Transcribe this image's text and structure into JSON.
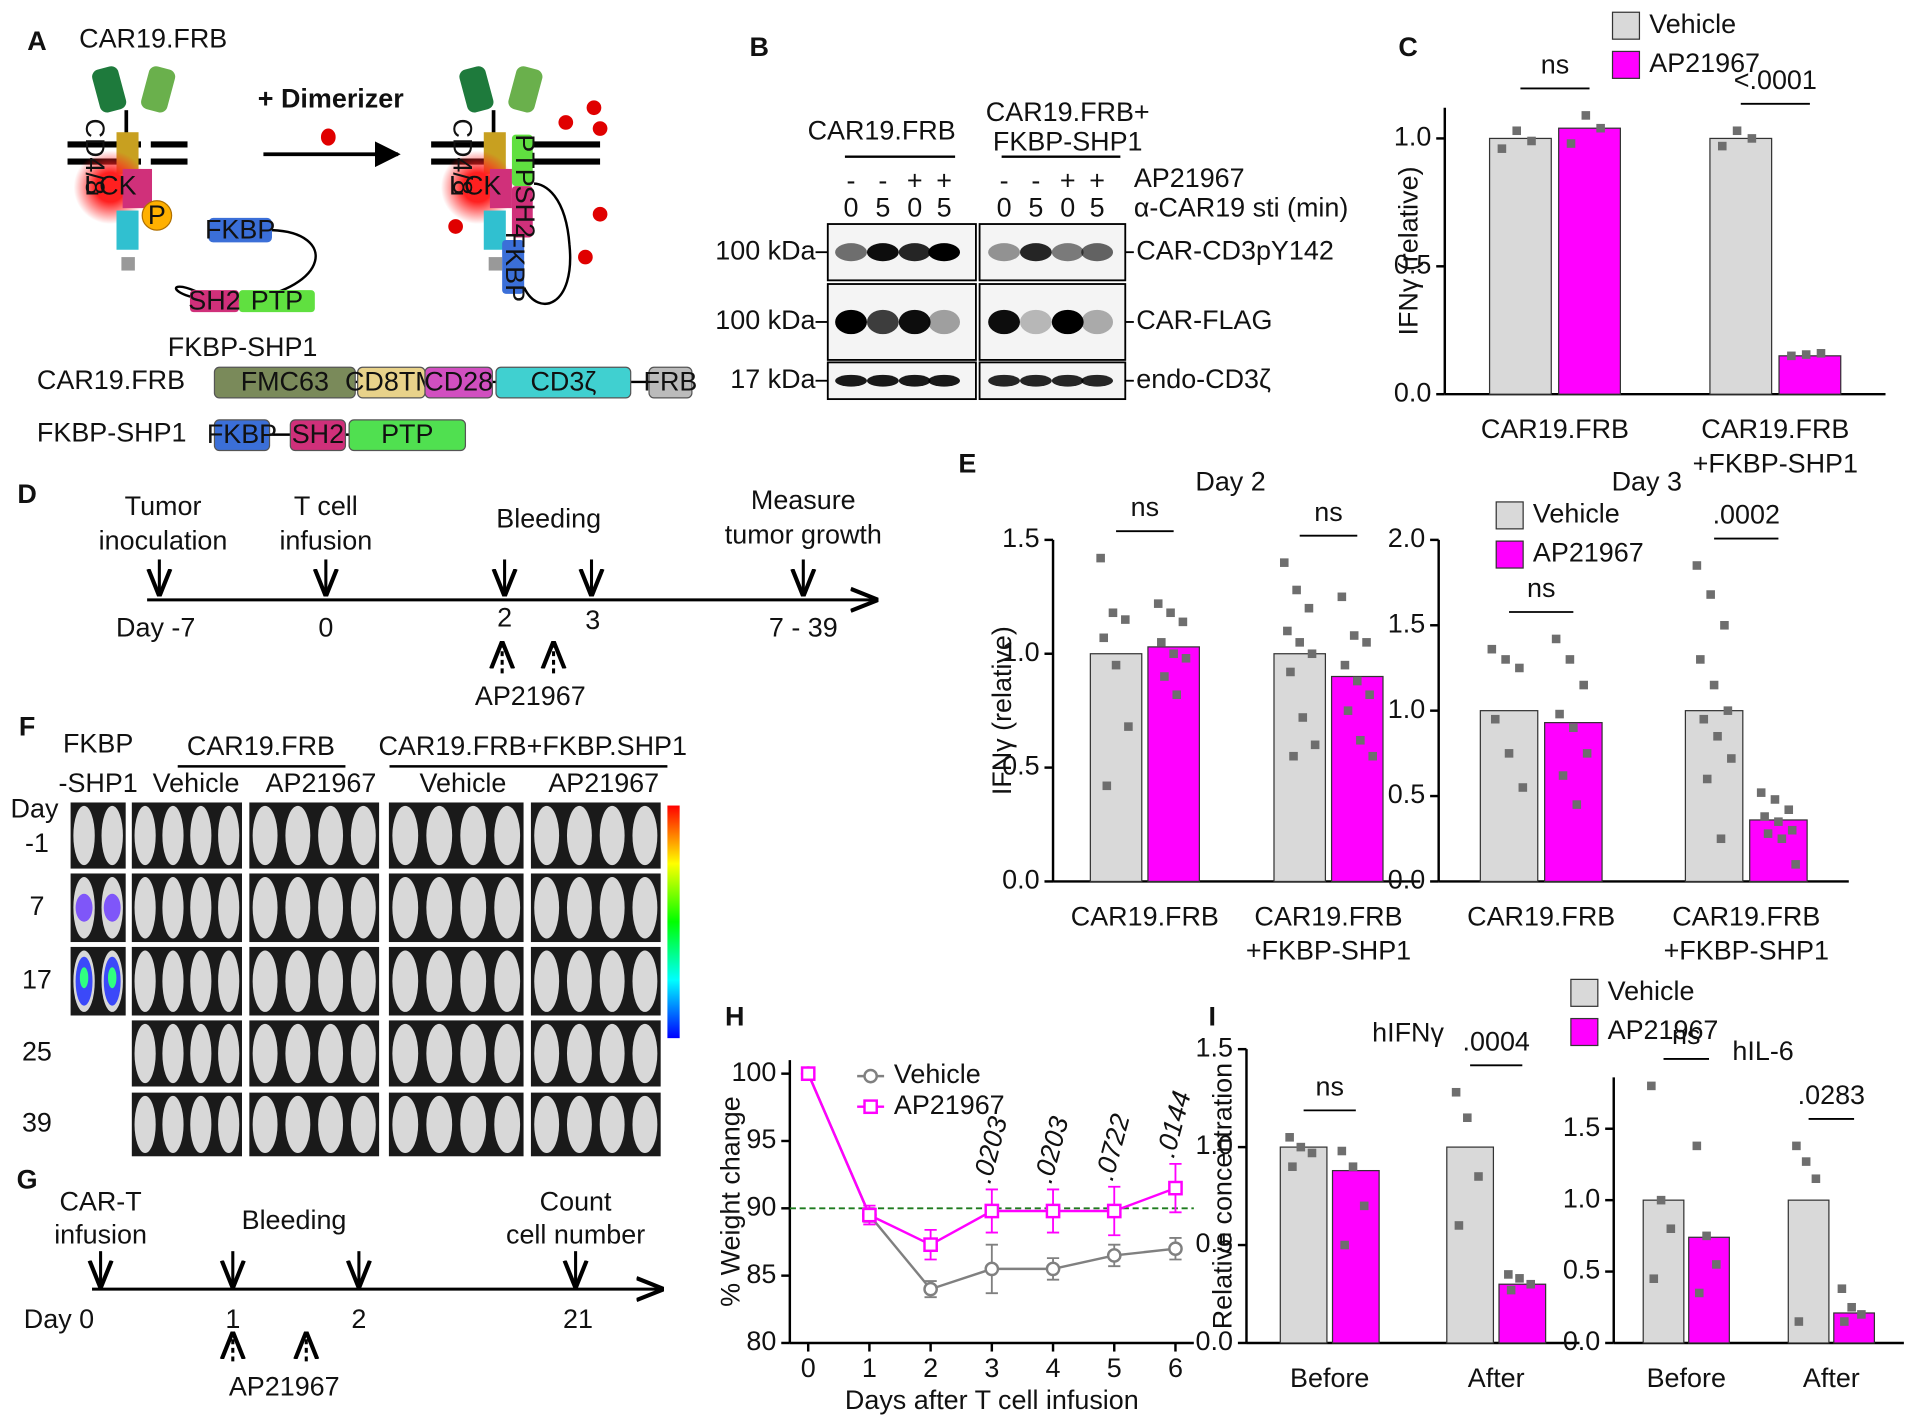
{
  "figure": {
    "A": {
      "label": "A",
      "title": "CAR19.FRB",
      "dimerizer": "+ Dimerizer",
      "before": [
        "CD4/8",
        "LCK",
        "P",
        "FKBP",
        "SH2",
        "PTP"
      ],
      "after": [
        "CD4/8",
        "LCK",
        "PTP",
        "SH2",
        "FKBP"
      ],
      "complex": "FKBP-SHP1",
      "constructs": [
        {
          "name": "CAR19.FRB",
          "domains": [
            "FMC63",
            "CD8TM",
            "CD28",
            "CD3ζ",
            "FRB"
          ]
        },
        {
          "name": "FKBP-SHP1",
          "domains": [
            "FKBP",
            "SH2",
            "PTP"
          ]
        }
      ]
    },
    "B": {
      "label": "B",
      "groups": [
        [
          "CAR19.FRB"
        ],
        [
          "CAR19.FRB+",
          "FKBP-SHP1"
        ]
      ],
      "treatment_label": "AP21967",
      "treatment": [
        "-",
        "-",
        "+",
        "+",
        "-",
        "-",
        "+",
        "+"
      ],
      "stim_label": "α-CAR19 sti (min)",
      "stim": [
        "0",
        "5",
        "0",
        "5",
        "0",
        "5",
        "0",
        "5"
      ],
      "blots": [
        {
          "size": "100 kDa",
          "name": "CAR-CD3pY142"
        },
        {
          "size": "100 kDa",
          "name": "CAR-FLAG"
        },
        {
          "size": "17 kDa",
          "name": "endo-CD3ζ"
        }
      ]
    },
    "D": {
      "label": "D",
      "events": [
        [
          "Tumor",
          "inoculation"
        ],
        [
          "T cell",
          "infusion"
        ],
        [
          "Bleeding"
        ],
        [
          "Measure",
          "tumor growth"
        ]
      ],
      "days": [
        "Day -7",
        "0",
        "2",
        "3",
        "7 - 39"
      ],
      "drug": "AP21967"
    },
    "F": {
      "label": "F",
      "control": [
        "FKBP",
        "-SHP1"
      ],
      "groups": [
        "CAR19.FRB",
        "CAR19.FRB+FKBP.SHP1"
      ],
      "subgroups": [
        "Vehicle",
        "AP21967",
        "Vehicle",
        "AP21967"
      ],
      "row_label": "Day",
      "days": [
        "-1",
        "7",
        "17",
        "25",
        "39"
      ]
    },
    "G": {
      "label": "G",
      "events": [
        [
          "CAR-T",
          "infusion"
        ],
        [
          "Bleeding"
        ],
        [
          "Count",
          "cell number"
        ]
      ],
      "days": [
        "Day 0",
        "1",
        "2",
        "21"
      ],
      "drug": "AP21967"
    }
  },
  "chart_data": [
    {
      "type": "bar",
      "panel": "C",
      "y_label": "IFNγ (relative)",
      "categories": [
        [
          "CAR19.FRB"
        ],
        [
          "CAR19.FRB",
          "+FKBP-SHP1"
        ]
      ],
      "series": [
        {
          "name": "Vehicle",
          "color": "#d9d9d9",
          "values": [
            1.0,
            1.0
          ],
          "points": [
            [
              0.96,
              1.03,
              0.99
            ],
            [
              0.97,
              1.03,
              1.0
            ]
          ]
        },
        {
          "name": "AP21967",
          "color": "#ff00ff",
          "values": [
            1.04,
            0.15
          ],
          "points": [
            [
              0.98,
              1.09,
              1.04
            ],
            [
              0.15,
              0.155,
              0.16
            ]
          ]
        }
      ],
      "annotations": [
        "ns",
        "<.0001"
      ],
      "ylim": [
        0,
        1.12
      ],
      "yticks": [
        {
          "value": 0,
          "label": "0.0"
        },
        {
          "value": 0.5,
          "label": "0.5"
        },
        {
          "value": 1,
          "label": "1.0"
        }
      ],
      "legend": true
    },
    {
      "type": "bar",
      "panel": "E",
      "title": "Day 2",
      "y_label": "IFNγ (relative)",
      "categories": [
        [
          "CAR19.FRB"
        ],
        [
          "CAR19.FRB",
          "+FKBP-SHP1"
        ]
      ],
      "series": [
        {
          "name": "Vehicle",
          "color": "#d9d9d9",
          "values": [
            1.0,
            1.0
          ],
          "points": [
            [
              1.42,
              1.18,
              1.15,
              1.07,
              0.95,
              0.68,
              0.42
            ],
            [
              1.4,
              1.28,
              1.2,
              1.1,
              1.05,
              1.0,
              0.92,
              0.72,
              0.6,
              0.55
            ]
          ]
        },
        {
          "name": "AP21967",
          "color": "#ff00ff",
          "values": [
            1.03,
            0.9
          ],
          "points": [
            [
              1.22,
              1.18,
              1.14,
              1.05,
              1.0,
              0.98,
              0.9,
              0.82
            ],
            [
              1.25,
              1.08,
              1.05,
              0.95,
              0.88,
              0.82,
              0.75,
              0.62,
              0.55
            ]
          ]
        }
      ],
      "annotations": [
        "ns",
        "ns"
      ],
      "ylim": [
        0,
        1.5
      ],
      "yticks": [
        {
          "value": 0,
          "label": "0.0"
        },
        {
          "value": 0.5,
          "label": "0.5"
        },
        {
          "value": 1,
          "label": "1.0"
        },
        {
          "value": 1.5,
          "label": "1.5"
        }
      ],
      "legend": false
    },
    {
      "type": "bar",
      "title": "Day 3",
      "categories": [
        [
          "CAR19.FRB"
        ],
        [
          "CAR19.FRB",
          "+FKBP-SHP1"
        ]
      ],
      "series": [
        {
          "name": "Vehicle",
          "color": "#d9d9d9",
          "values": [
            1.0,
            1.0
          ],
          "points": [
            [
              1.36,
              1.3,
              1.25,
              0.95,
              0.75,
              0.55
            ],
            [
              1.85,
              1.68,
              1.5,
              1.3,
              1.15,
              1.0,
              0.95,
              0.85,
              0.72,
              0.6,
              0.25
            ]
          ]
        },
        {
          "name": "AP21967",
          "color": "#ff00ff",
          "values": [
            0.93,
            0.36
          ],
          "points": [
            [
              1.42,
              1.3,
              1.15,
              0.98,
              0.9,
              0.75,
              0.62,
              0.45
            ],
            [
              0.52,
              0.48,
              0.42,
              0.38,
              0.35,
              0.3,
              0.28,
              0.25,
              0.1
            ]
          ]
        }
      ],
      "annotations": [
        "ns",
        ".0002"
      ],
      "ylim": [
        0,
        2
      ],
      "yticks": [
        {
          "value": 0,
          "label": "0.0"
        },
        {
          "value": 0.5,
          "label": "0.5"
        },
        {
          "value": 1,
          "label": "1.0"
        },
        {
          "value": 1.5,
          "label": "1.5"
        },
        {
          "value": 2,
          "label": "2.0"
        }
      ],
      "legend": true
    },
    {
      "type": "line",
      "panel": "H",
      "x_label": "Days after T cell infusion",
      "y_label": "% Weight change",
      "x": [
        0,
        1,
        2,
        3,
        4,
        5,
        6
      ],
      "series": [
        {
          "name": "Vehicle",
          "color": "#808080",
          "marker": "circle",
          "values": [
            100,
            89.5,
            84,
            85.5,
            85.5,
            86.5,
            87
          ],
          "errors": [
            0,
            0.5,
            0.6,
            1.8,
            0.8,
            0.8,
            0.8
          ]
        },
        {
          "name": "AP21967",
          "color": "#ff00ff",
          "marker": "square",
          "values": [
            100,
            89.5,
            87.3,
            89.8,
            89.8,
            89.8,
            91.5
          ],
          "errors": [
            0,
            0.7,
            1.1,
            1.6,
            1.6,
            1.8,
            1.8
          ]
        }
      ],
      "annotations": [
        null,
        null,
        null,
        ".0203",
        ".0203",
        ".0722",
        ".0144"
      ],
      "reference_line": 90,
      "reference_color": "#1e7b1e",
      "xlim": [
        -0.3,
        6.3
      ],
      "xticks": [
        0,
        1,
        2,
        3,
        4,
        5,
        6
      ],
      "ylim": [
        80,
        101
      ],
      "yticks": [
        80,
        85,
        90,
        95,
        100
      ],
      "legend": true
    },
    {
      "type": "bar",
      "panel": "I",
      "title": "hIFNγ",
      "y_label": "Relative concentration",
      "categories": [
        [
          "Before"
        ],
        [
          "After"
        ]
      ],
      "series": [
        {
          "name": "Vehicle",
          "color": "#d9d9d9",
          "values": [
            1.0,
            1.0
          ],
          "points": [
            [
              1.05,
              1.0,
              0.97,
              0.9
            ],
            [
              1.28,
              1.15,
              0.85,
              0.6
            ]
          ]
        },
        {
          "name": "AP21967",
          "color": "#ff00ff",
          "values": [
            0.88,
            0.3
          ],
          "points": [
            [
              0.98,
              0.9,
              0.7,
              0.5
            ],
            [
              0.35,
              0.33,
              0.3,
              0.27
            ]
          ]
        }
      ],
      "annotations": [
        "ns",
        ".0004"
      ],
      "ylim": [
        0,
        1.5
      ],
      "yticks": [
        {
          "value": 0,
          "label": "0.0"
        },
        {
          "value": 0.5,
          "label": "0.5"
        },
        {
          "value": 1,
          "label": "1.0"
        },
        {
          "value": 1.5,
          "label": "1.5"
        }
      ],
      "legend": true
    },
    {
      "type": "bar",
      "title": "hIL-6",
      "categories": [
        [
          "Before"
        ],
        [
          "After"
        ]
      ],
      "series": [
        {
          "name": "Vehicle",
          "color": "#d9d9d9",
          "values": [
            1.0,
            1.0
          ],
          "points": [
            [
              1.8,
              1.0,
              0.8,
              0.45
            ],
            [
              1.38,
              1.27,
              1.15,
              0.15
            ]
          ]
        },
        {
          "name": "AP21967",
          "color": "#ff00ff",
          "values": [
            0.74,
            0.21
          ],
          "points": [
            [
              1.38,
              0.75,
              0.55,
              0.35
            ],
            [
              0.38,
              0.25,
              0.2,
              0.15
            ]
          ]
        }
      ],
      "annotations": [
        "ns",
        ".0283"
      ],
      "ylim": [
        0,
        1.86
      ],
      "yticks": [
        {
          "value": 0,
          "label": "0.0"
        },
        {
          "value": 0.5,
          "label": "0.5"
        },
        {
          "value": 1,
          "label": "1.0"
        },
        {
          "value": 1.5,
          "label": "1.5"
        }
      ],
      "legend": false
    }
  ]
}
